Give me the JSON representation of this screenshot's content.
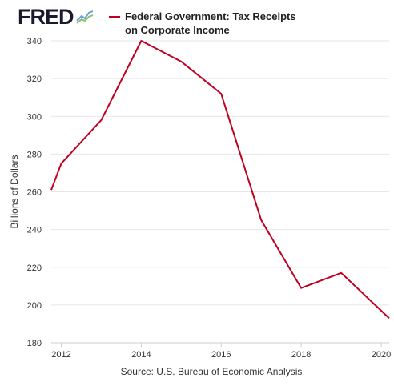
{
  "logo": {
    "text": "FRED",
    "icon": "fred-chart-icon"
  },
  "legend": {
    "label": "Federal Government: Tax Receipts on Corporate Income",
    "color": "#c00020"
  },
  "source": "Source: U.S. Bureau of Economic Analysis",
  "chart_data": {
    "type": "line",
    "title": "",
    "xlabel": "",
    "ylabel": "Billions of Dollars",
    "xlim": [
      2011.75,
      2020.2
    ],
    "ylim": [
      180,
      340
    ],
    "x_ticks": [
      2012,
      2014,
      2016,
      2018,
      2020
    ],
    "y_ticks": [
      180,
      200,
      220,
      240,
      260,
      280,
      300,
      320,
      340
    ],
    "grid": "horizontal",
    "legend_position": "top",
    "series": [
      {
        "name": "Federal Government: Tax Receipts on Corporate Income",
        "color": "#c00020",
        "x": [
          2011.75,
          2012.0,
          2013.0,
          2014.0,
          2015.0,
          2016.0,
          2017.0,
          2018.0,
          2019.0,
          2020.2
        ],
        "y": [
          261,
          275,
          298,
          340,
          329,
          312,
          245,
          209,
          217,
          193
        ]
      }
    ]
  }
}
